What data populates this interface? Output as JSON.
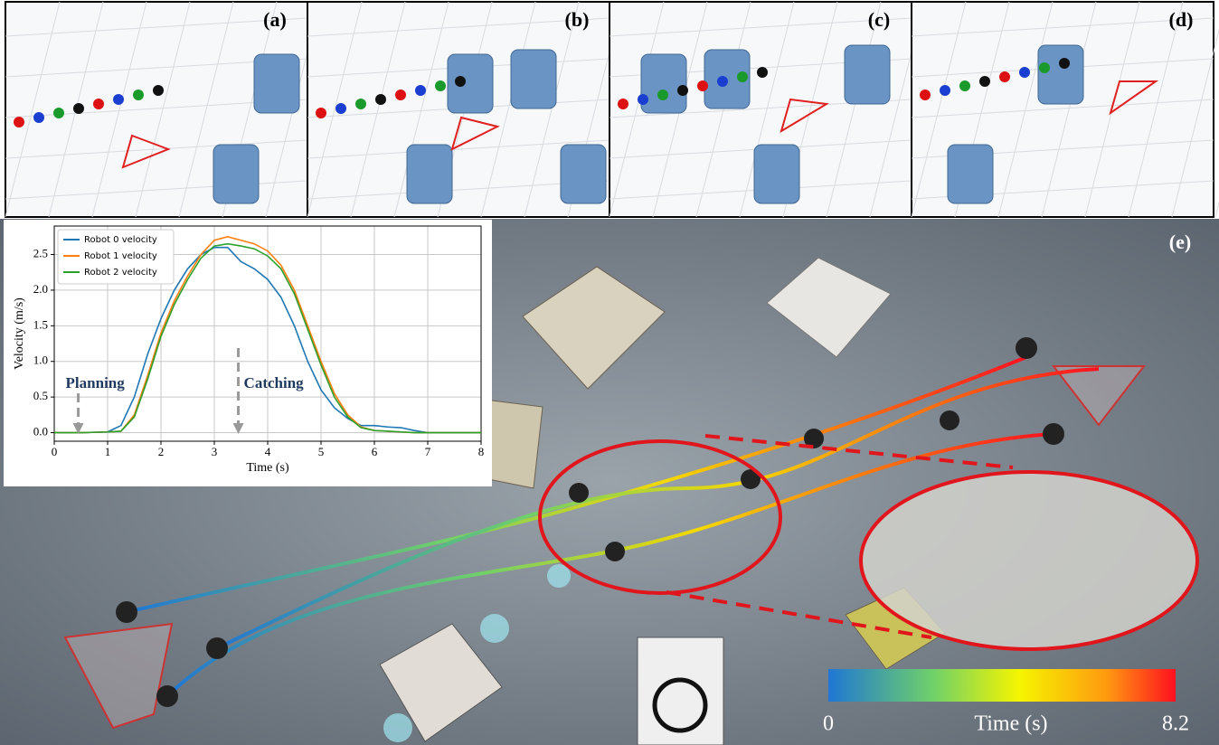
{
  "panels": [
    {
      "label": "(a)"
    },
    {
      "label": "(b)"
    },
    {
      "label": "(c)"
    },
    {
      "label": "(d)"
    }
  ],
  "photo_label": "(e)",
  "colorbar": {
    "label": "Time (s)",
    "lim": [
      0,
      8.2
    ],
    "ticks": [
      0,
      8.2
    ]
  },
  "chart_data": {
    "type": "line",
    "xlabel": "Time (s)",
    "ylabel": "Velocity (m/s)",
    "x": [
      0,
      0.5,
      1,
      1.25,
      1.5,
      1.75,
      2,
      2.25,
      2.5,
      2.75,
      3,
      3.25,
      3.5,
      3.75,
      4,
      4.25,
      4.5,
      4.75,
      5,
      5.25,
      5.5,
      5.75,
      6,
      6.25,
      6.5,
      6.75,
      7,
      7.5,
      8
    ],
    "series": [
      {
        "name": "Robot 0 velocity",
        "color": "#1f77b4",
        "values": [
          0,
          0,
          0.01,
          0.1,
          0.5,
          1.1,
          1.6,
          2.0,
          2.3,
          2.5,
          2.6,
          2.6,
          2.4,
          2.3,
          2.15,
          1.9,
          1.5,
          1.0,
          0.6,
          0.35,
          0.2,
          0.1,
          0.1,
          0.08,
          0.07,
          0.03,
          0,
          0,
          0
        ]
      },
      {
        "name": "Robot 1 velocity",
        "color": "#ff7f0e",
        "values": [
          0,
          0,
          0.01,
          0.02,
          0.25,
          0.8,
          1.4,
          1.85,
          2.2,
          2.5,
          2.7,
          2.75,
          2.7,
          2.65,
          2.55,
          2.35,
          2.0,
          1.5,
          1.0,
          0.55,
          0.25,
          0.08,
          0.03,
          0.02,
          0.01,
          0,
          0,
          0,
          0
        ]
      },
      {
        "name": "Robot 2 velocity",
        "color": "#2ca02c",
        "values": [
          0,
          0,
          0.01,
          0.02,
          0.22,
          0.75,
          1.35,
          1.8,
          2.15,
          2.45,
          2.62,
          2.65,
          2.62,
          2.58,
          2.48,
          2.3,
          1.95,
          1.45,
          0.95,
          0.5,
          0.22,
          0.07,
          0.03,
          0.02,
          0.01,
          0,
          0,
          0,
          0
        ]
      }
    ],
    "xlim": [
      0,
      8
    ],
    "ylim": [
      -0.12,
      2.9
    ],
    "xticks": [
      0,
      1,
      2,
      3,
      4,
      5,
      6,
      7,
      8
    ],
    "yticks": [
      {
        "value": 0,
        "label": "0.0"
      },
      {
        "value": 0.5,
        "label": "0.5"
      },
      {
        "value": 1,
        "label": "1.0"
      },
      {
        "value": 1.5,
        "label": "1.5"
      },
      {
        "value": 2,
        "label": "2.0"
      },
      {
        "value": 2.5,
        "label": "2.5"
      }
    ],
    "grid": true,
    "legend": "upper left",
    "annotations": [
      {
        "text": "Planning",
        "x": 0.45
      },
      {
        "text": "Catching",
        "x": 3.45
      }
    ]
  }
}
